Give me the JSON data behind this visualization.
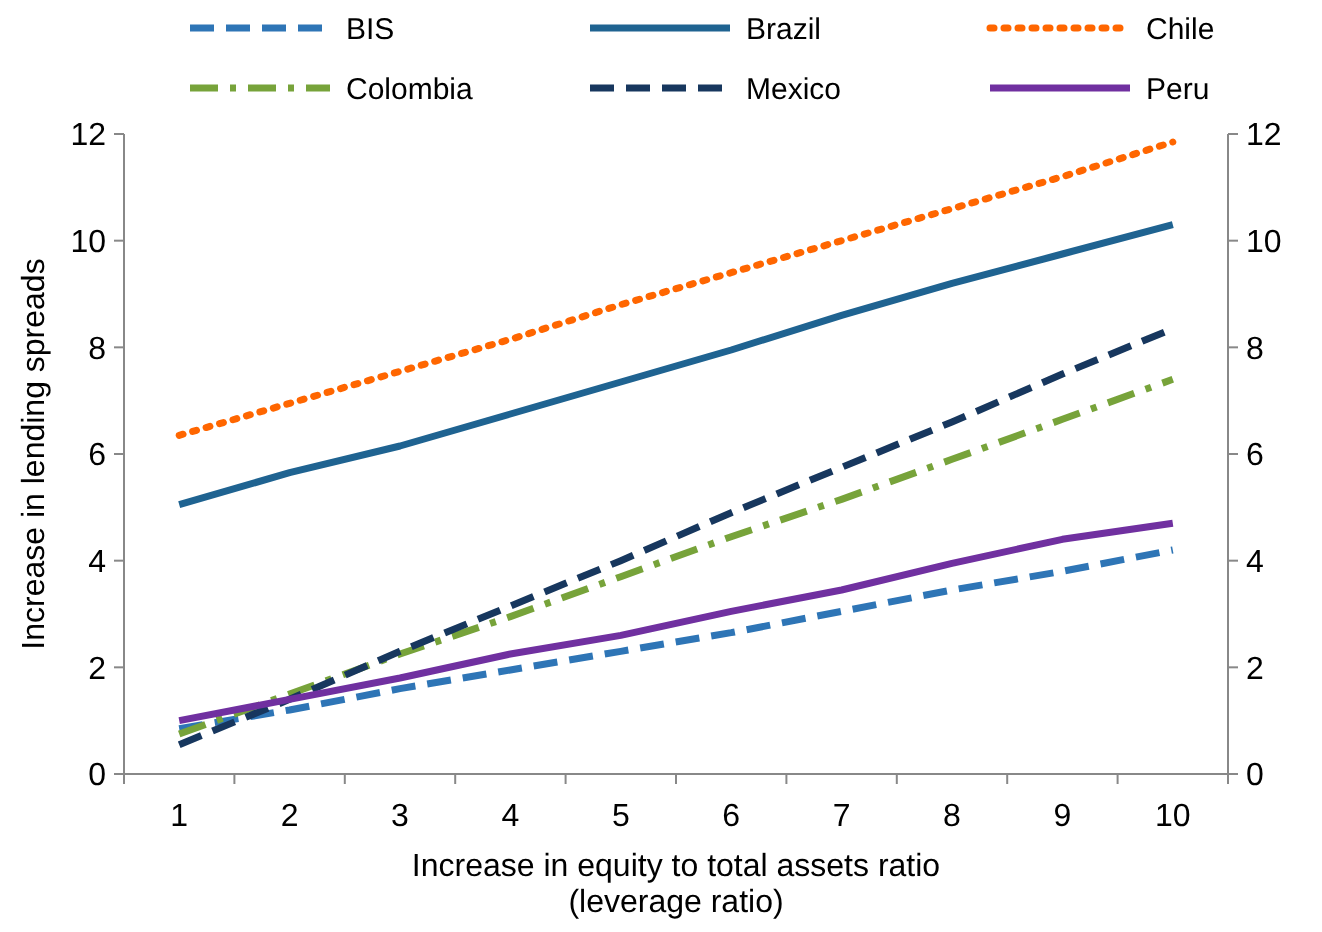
{
  "chart_data": {
    "type": "line",
    "xlabel": "Increase in  equity to total assets ratio\n(leverage ratio)",
    "ylabel": "Increase in lending  spreads",
    "categories": [
      "1",
      "2",
      "3",
      "4",
      "5",
      "6",
      "7",
      "8",
      "9",
      "10"
    ],
    "series": [
      {
        "name": "BIS",
        "color": "#2e75b6",
        "line_style": "dashed",
        "values": [
          0.85,
          1.2,
          1.6,
          1.95,
          2.3,
          2.65,
          3.05,
          3.45,
          3.8,
          4.2
        ]
      },
      {
        "name": "Brazil",
        "color": "#1f6391",
        "line_style": "solid",
        "values": [
          5.05,
          5.65,
          6.15,
          6.75,
          7.35,
          7.95,
          8.6,
          9.2,
          9.75,
          10.3
        ]
      },
      {
        "name": "Chile",
        "color": "#ff6600",
        "line_style": "dotted",
        "values": [
          6.35,
          6.95,
          7.55,
          8.15,
          8.8,
          9.4,
          10.0,
          10.6,
          11.2,
          11.85
        ]
      },
      {
        "name": "Colombia",
        "color": "#77a33a",
        "line_style": "dashdot",
        "values": [
          0.75,
          1.5,
          2.25,
          2.95,
          3.7,
          4.45,
          5.15,
          5.9,
          6.65,
          7.4
        ]
      },
      {
        "name": "Mexico",
        "color": "#17375e",
        "line_style": "dashed",
        "values": [
          0.55,
          1.4,
          2.3,
          3.15,
          4.0,
          4.9,
          5.75,
          6.6,
          7.5,
          8.35
        ]
      },
      {
        "name": "Peru",
        "color": "#7030a0",
        "line_style": "solid",
        "values": [
          1.0,
          1.4,
          1.8,
          2.25,
          2.6,
          3.05,
          3.45,
          3.95,
          4.4,
          4.7
        ]
      }
    ],
    "ylim": [
      0,
      12
    ],
    "yticks": [
      0,
      2,
      4,
      6,
      8,
      10,
      12
    ],
    "y2lim": [
      0,
      12
    ],
    "y2ticks": [
      0,
      2,
      4,
      6,
      8,
      10,
      12
    ],
    "grid": false,
    "legend": "top",
    "marker": "none"
  }
}
